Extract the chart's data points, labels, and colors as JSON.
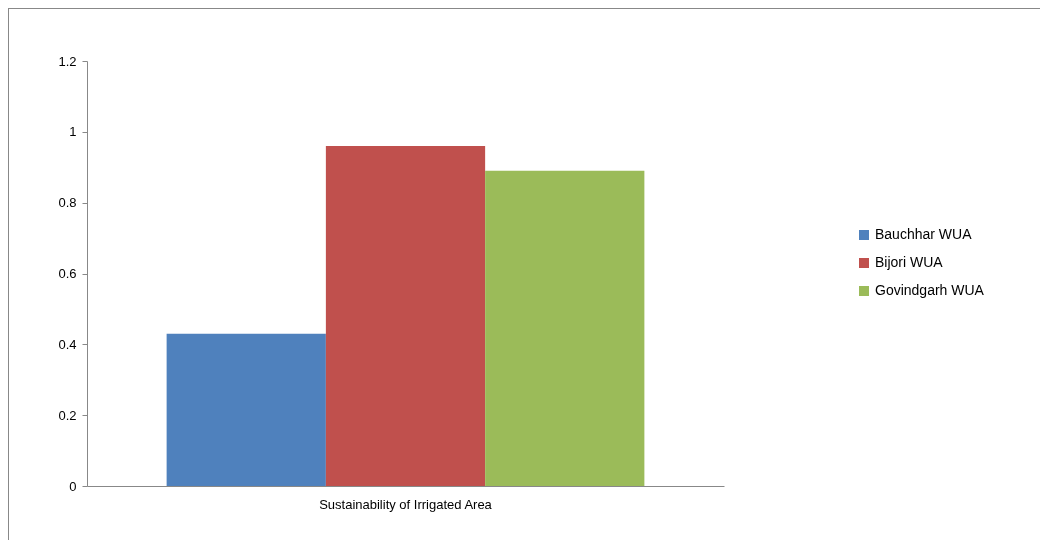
{
  "chart_data": {
    "type": "bar",
    "categories": [
      "Sustainability of Irrigated Area"
    ],
    "series": [
      {
        "name": "Bauchhar WUA",
        "color": "#4f81bd",
        "values": [
          0.43
        ]
      },
      {
        "name": "Bijori WUA",
        "color": "#c0504d",
        "values": [
          0.96
        ]
      },
      {
        "name": "Govindgarh WUA",
        "color": "#9bbb59",
        "values": [
          0.89
        ]
      }
    ],
    "ylim": [
      0,
      1.2
    ],
    "yticks": [
      0,
      0.2,
      0.4,
      0.6,
      0.8,
      1,
      1.2
    ],
    "grid": false,
    "legend": "right"
  }
}
